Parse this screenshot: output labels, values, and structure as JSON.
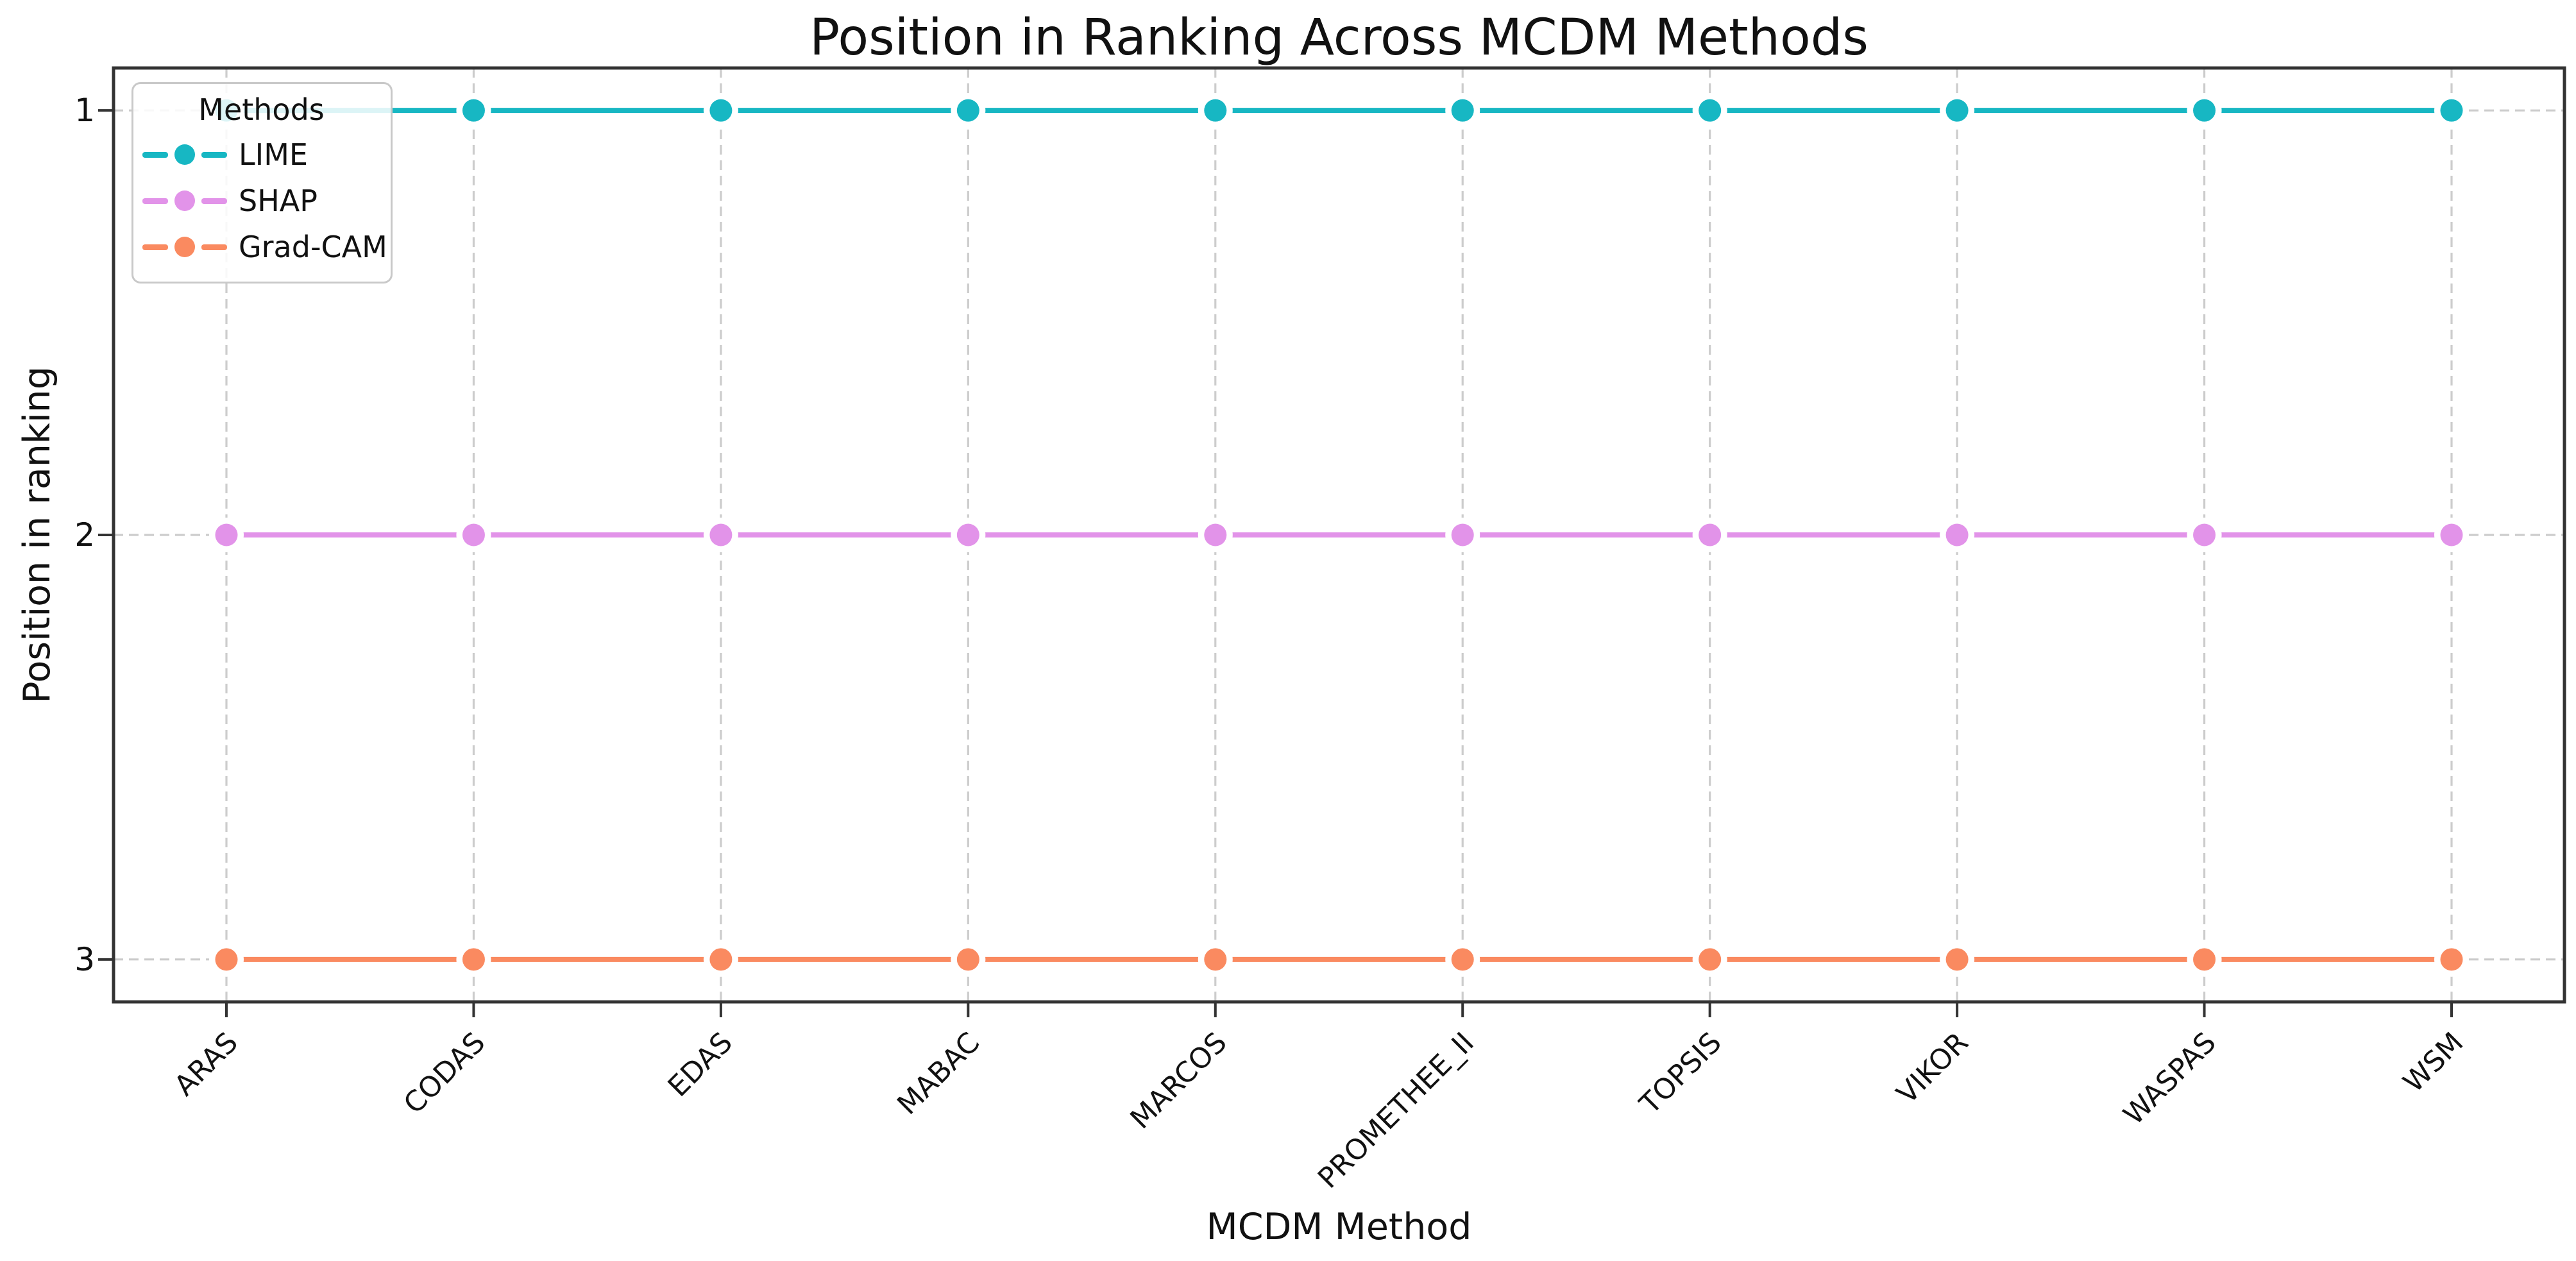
{
  "chart_data": {
    "type": "line",
    "title": "Position in Ranking Across MCDM Methods",
    "xlabel": "MCDM Method",
    "ylabel": "Position in ranking",
    "categories": [
      "ARAS",
      "CODAS",
      "EDAS",
      "MABAC",
      "MARCOS",
      "PROMETHEE_II",
      "TOPSIS",
      "VIKOR",
      "WASPAS",
      "WSM"
    ],
    "series": [
      {
        "name": "LIME",
        "color": "#17b7c3",
        "values": [
          1,
          1,
          1,
          1,
          1,
          1,
          1,
          1,
          1,
          1
        ]
      },
      {
        "name": "SHAP",
        "color": "#e293e9",
        "values": [
          2,
          2,
          2,
          2,
          2,
          2,
          2,
          2,
          2,
          2
        ]
      },
      {
        "name": "Grad-CAM",
        "color": "#fa8a60",
        "values": [
          3,
          3,
          3,
          3,
          3,
          3,
          3,
          3,
          3,
          3
        ]
      }
    ],
    "yticks": [
      1,
      2,
      3
    ],
    "ylim": [
      0.9,
      3.1
    ],
    "y_axis_inverted": true,
    "x_tick_rotation": 45,
    "grid": true,
    "grid_style": "dashed",
    "legend": {
      "title": "Methods",
      "position": "upper left"
    },
    "marker": "circle",
    "style": {
      "grid_color": "#cccccc",
      "spine_color": "#333333",
      "text_color": "#111111",
      "background": "#ffffff"
    }
  }
}
